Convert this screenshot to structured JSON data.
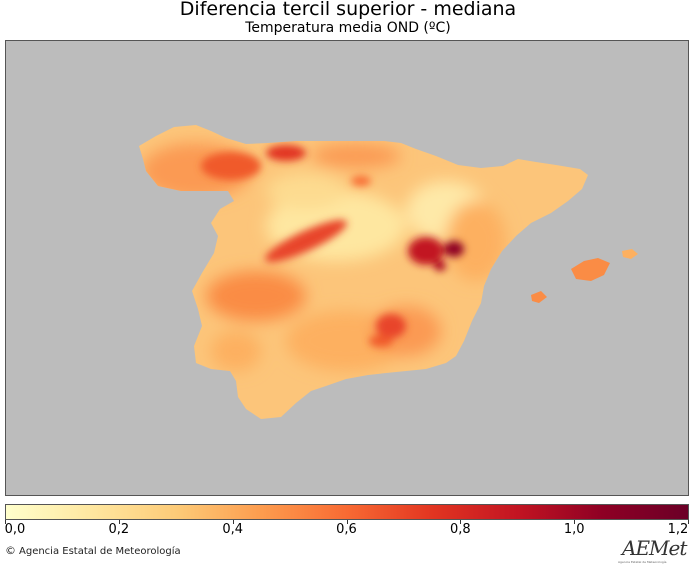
{
  "title": "Diferencia tercil superior - mediana",
  "subtitle": "Temperatura media OND (ºC)",
  "colorbar": {
    "min": 0.0,
    "max": 1.2,
    "ticks": [
      "0,0",
      "0,2",
      "0,4",
      "0,6",
      "0,8",
      "1,0",
      "1,2"
    ],
    "colors": [
      "#ffffcc",
      "#fee7a0",
      "#fdcb78",
      "#fd9c4e",
      "#f86a33",
      "#e23521",
      "#c21422",
      "#8e0024",
      "#6b0027"
    ]
  },
  "map": {
    "background_color": "#bcbcbc",
    "region": "Península Ibérica (España) e Islas Baleares"
  },
  "credit": "Agencia Estatal de Meteorología",
  "logo": {
    "text": "AEMet",
    "subtext": "Agencia Estatal de Meteorología"
  }
}
